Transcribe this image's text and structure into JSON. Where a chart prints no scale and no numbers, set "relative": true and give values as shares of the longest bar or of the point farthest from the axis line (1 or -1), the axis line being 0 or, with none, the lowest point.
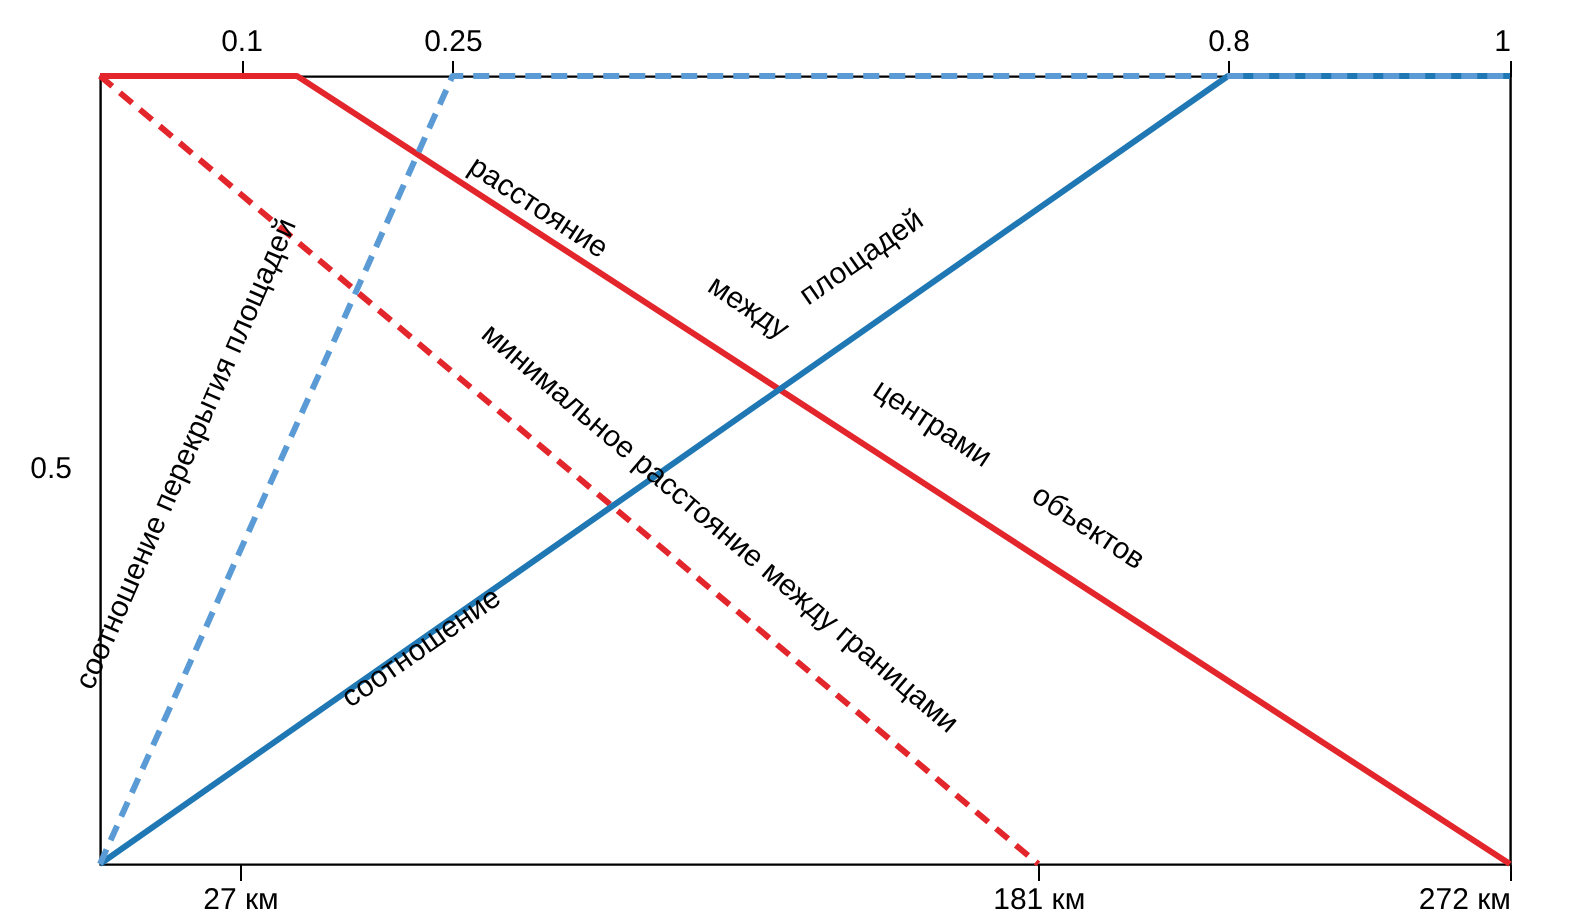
{
  "chart_data": {
    "type": "line",
    "xlim": [
      0,
      272
    ],
    "xticks": [
      {
        "value": 27,
        "label": "27 км"
      },
      {
        "value": 181,
        "label": "181 км"
      },
      {
        "value": 272,
        "label": "272 км"
      }
    ],
    "x2lim": [
      0,
      1
    ],
    "x2ticks": [
      0.1,
      0.25,
      0.8,
      1
    ],
    "relative": true,
    "series": [
      {
        "color": "#e3262b",
        "line_style": "solid",
        "x": [
          0,
          38,
          272
        ],
        "values": [
          1,
          1,
          0
        ]
      },
      {
        "color": "#e3262b",
        "line_style": "dashed",
        "x": [
          0,
          181
        ],
        "values": [
          1,
          0
        ]
      },
      {
        "color": "#1f77b4",
        "line_style": "solid",
        "axis": "x2",
        "x": [
          0,
          0.8,
          1
        ],
        "values": [
          0,
          1,
          1
        ]
      },
      {
        "color": "#5b9bd5",
        "line_style": "dashed",
        "axis": "x2",
        "x": [
          0,
          0.25,
          1
        ],
        "values": [
          0,
          1,
          1
        ]
      }
    ],
    "annotations": [
      "расстояние",
      "между",
      "центрами",
      "объектов",
      "соотношение",
      "площадей",
      "соотношение перекрытия площадей",
      "минимальное расстояние между границами",
      "0.5"
    ],
    "grid": false
  }
}
